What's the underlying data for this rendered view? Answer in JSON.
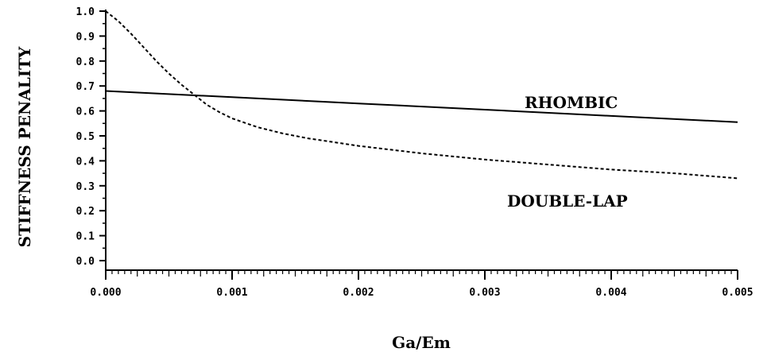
{
  "chart_data": {
    "type": "line",
    "title": "",
    "xlabel": "Ga/Em",
    "ylabel": "STIFFNESS PENALITY",
    "xlim": [
      0.0,
      0.005
    ],
    "ylim": [
      0.0,
      1.0
    ],
    "x_ticks": [
      0.0,
      0.001,
      0.002,
      0.003,
      0.004,
      0.005
    ],
    "x_tick_labels": [
      "0.000",
      "0.001",
      "0.002",
      "0.003",
      "0.004",
      "0.005"
    ],
    "y_ticks": [
      0.0,
      0.1,
      0.2,
      0.3,
      0.4,
      0.5,
      0.6,
      0.7,
      0.8,
      0.9,
      1.0
    ],
    "y_tick_labels": [
      "0.0",
      "0.1",
      "0.2",
      "0.3",
      "0.4",
      "0.5",
      "0.6",
      "0.7",
      "0.8",
      "0.9",
      "1.0"
    ],
    "grid": false,
    "series": [
      {
        "name": "RHOMBIC",
        "style": "solid",
        "color": "#000000",
        "x": [
          0.0,
          0.001,
          0.002,
          0.003,
          0.004,
          0.005
        ],
        "y": [
          0.68,
          0.655,
          0.63,
          0.605,
          0.58,
          0.555
        ]
      },
      {
        "name": "DOUBLE-LAP",
        "style": "dashed",
        "color": "#000000",
        "x": [
          0.0,
          0.0001,
          0.0002,
          0.0003,
          0.0004,
          0.0005,
          0.0006,
          0.0007,
          0.0008,
          0.0009,
          0.001,
          0.0012,
          0.0014,
          0.0016,
          0.0018,
          0.002,
          0.0025,
          0.003,
          0.0035,
          0.004,
          0.0045,
          0.005
        ],
        "y": [
          1.0,
          0.96,
          0.91,
          0.855,
          0.8,
          0.75,
          0.705,
          0.665,
          0.625,
          0.595,
          0.57,
          0.535,
          0.51,
          0.49,
          0.475,
          0.46,
          0.43,
          0.405,
          0.385,
          0.365,
          0.35,
          0.33
        ]
      }
    ]
  }
}
